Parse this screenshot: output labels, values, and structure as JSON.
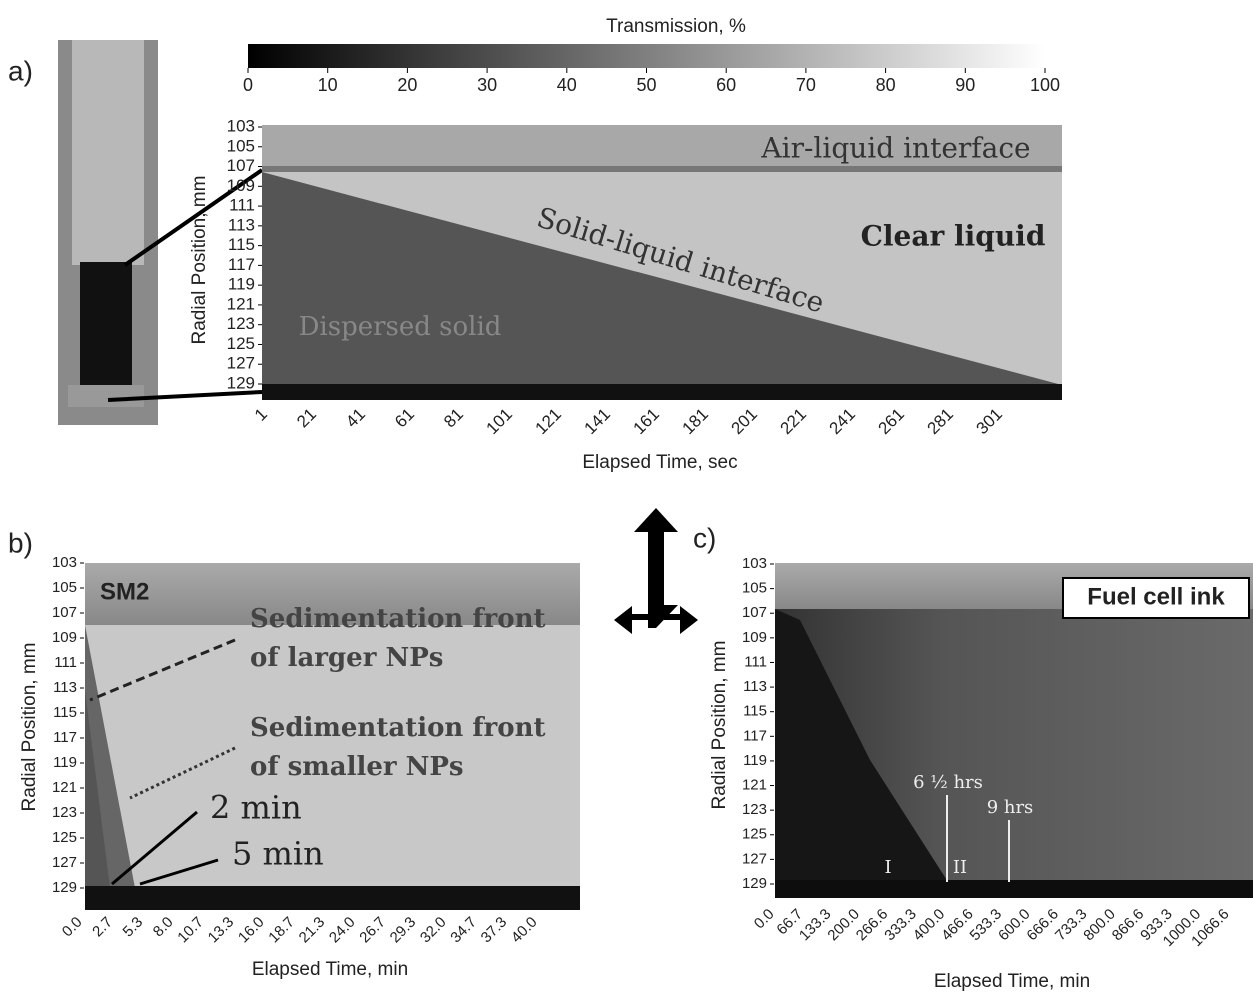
{
  "panels": [
    {
      "label": "a)",
      "colorbar_title": "Transmission, %",
      "colorbar_ticks": [
        0,
        10,
        20,
        30,
        40,
        50,
        60,
        70,
        80,
        90,
        100
      ],
      "y_label": "Radial Position, mm",
      "x_label": "Elapsed Time, sec",
      "yticks": [
        103,
        105,
        107,
        109,
        111,
        113,
        115,
        117,
        119,
        121,
        123,
        125,
        127,
        129
      ],
      "xticks": [
        1,
        21,
        41,
        61,
        81,
        101,
        121,
        141,
        161,
        181,
        201,
        221,
        241,
        261,
        281,
        301
      ],
      "annotations": [
        "Air-liquid interface",
        "Clear liquid",
        "Solid-liquid interface",
        "Dispersed solid"
      ]
    },
    {
      "label": "b)",
      "y_label": "Radial Position, mm",
      "x_label": "Elapsed Time, min",
      "yticks": [
        103,
        105,
        107,
        109,
        111,
        113,
        115,
        117,
        119,
        121,
        123,
        125,
        127,
        129
      ],
      "xticks": [
        "0.0",
        "2.7",
        "5.3",
        "8.0",
        "10.7",
        "13.3",
        "16.0",
        "18.7",
        "21.3",
        "24.0",
        "26.7",
        "29.3",
        "32.0",
        "34.7",
        "37.3",
        "40.0"
      ],
      "annotations": [
        "SM2",
        "Sedimentation front",
        "of larger NPs",
        "Sedimentation front",
        "of smaller NPs",
        "2 min",
        "5 min"
      ]
    },
    {
      "label": "c)",
      "y_label": "Radial Position, mm",
      "x_label": "Elapsed Time, min",
      "yticks": [
        103,
        105,
        107,
        109,
        111,
        113,
        115,
        117,
        119,
        121,
        123,
        125,
        127,
        129
      ],
      "xticks": [
        "0.0",
        "66.7",
        "133.3",
        "200.0",
        "266.6",
        "333.3",
        "400.0",
        "466.6",
        "533.3",
        "600.0",
        "666.6",
        "733.3",
        "800.0",
        "866.6",
        "933.3",
        "1000.0",
        "1066.6"
      ],
      "annotations": [
        "Fuel cell ink",
        "6 ½ hrs",
        "9 hrs",
        "I",
        "II"
      ]
    }
  ]
}
